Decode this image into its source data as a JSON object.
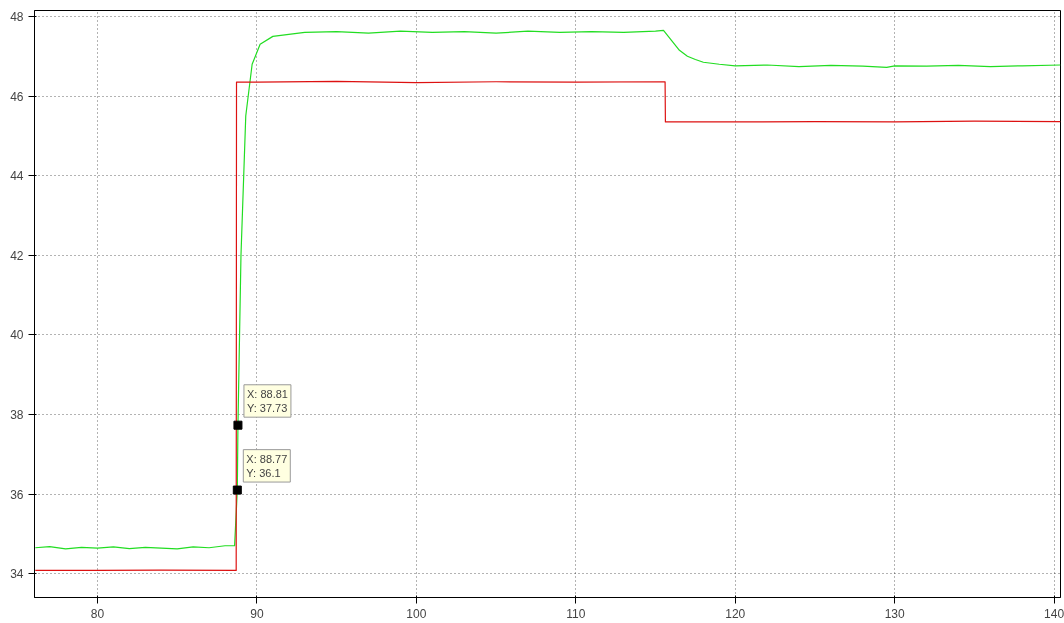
{
  "chart_data": {
    "type": "line",
    "xlim": [
      76.05,
      140.4
    ],
    "ylim": [
      33.4,
      48.15
    ],
    "xticks": [
      80,
      90,
      100,
      110,
      120,
      130,
      140
    ],
    "yticks": [
      34,
      36,
      38,
      40,
      42,
      44,
      46,
      48
    ],
    "grid": true,
    "line_style": "solid",
    "marker": "none",
    "series": [
      {
        "color": "#22dd22",
        "x": [
          76.1,
          77,
          78,
          79,
          80,
          81,
          82,
          83,
          84,
          85,
          86,
          87,
          88,
          88.6,
          88.77,
          88.81,
          89.0,
          89.3,
          89.7,
          90.2,
          91,
          92,
          93,
          95,
          97,
          99,
          101,
          103,
          105,
          107,
          109,
          111,
          113,
          115,
          115.5,
          116,
          116.5,
          117,
          117.5,
          118,
          119,
          120,
          122,
          124,
          126,
          128,
          129.5,
          130,
          132,
          134,
          136,
          138,
          140.4
        ],
        "values": [
          34.65,
          34.68,
          34.62,
          34.66,
          34.64,
          34.67,
          34.63,
          34.66,
          34.64,
          34.62,
          34.67,
          34.65,
          34.7,
          34.7,
          36.1,
          37.73,
          42.0,
          45.5,
          46.8,
          47.3,
          47.5,
          47.55,
          47.6,
          47.62,
          47.58,
          47.63,
          47.6,
          47.62,
          47.58,
          47.63,
          47.6,
          47.62,
          47.6,
          47.63,
          47.65,
          47.4,
          47.15,
          47.0,
          46.92,
          46.85,
          46.8,
          46.76,
          46.78,
          46.74,
          46.77,
          46.75,
          46.72,
          46.76,
          46.75,
          46.77,
          46.74,
          46.76,
          46.78
        ]
      },
      {
        "color": "#dd1111",
        "x": [
          76.1,
          80,
          84,
          88.7,
          88.72,
          90,
          95,
          100,
          105,
          110,
          115.6,
          115.62,
          120,
          125,
          130,
          135,
          140.4
        ],
        "values": [
          34.08,
          34.08,
          34.09,
          34.08,
          46.35,
          46.35,
          46.37,
          46.34,
          46.36,
          46.35,
          46.36,
          45.35,
          45.35,
          45.36,
          45.35,
          45.37,
          45.36
        ]
      }
    ],
    "annotations": [
      {
        "text": "X: 88.81\nY: 37.73",
        "x": 88.81,
        "y": 37.73
      },
      {
        "text": "X: 88.77\nY: 36.1",
        "x": 88.77,
        "y": 36.1
      }
    ]
  }
}
